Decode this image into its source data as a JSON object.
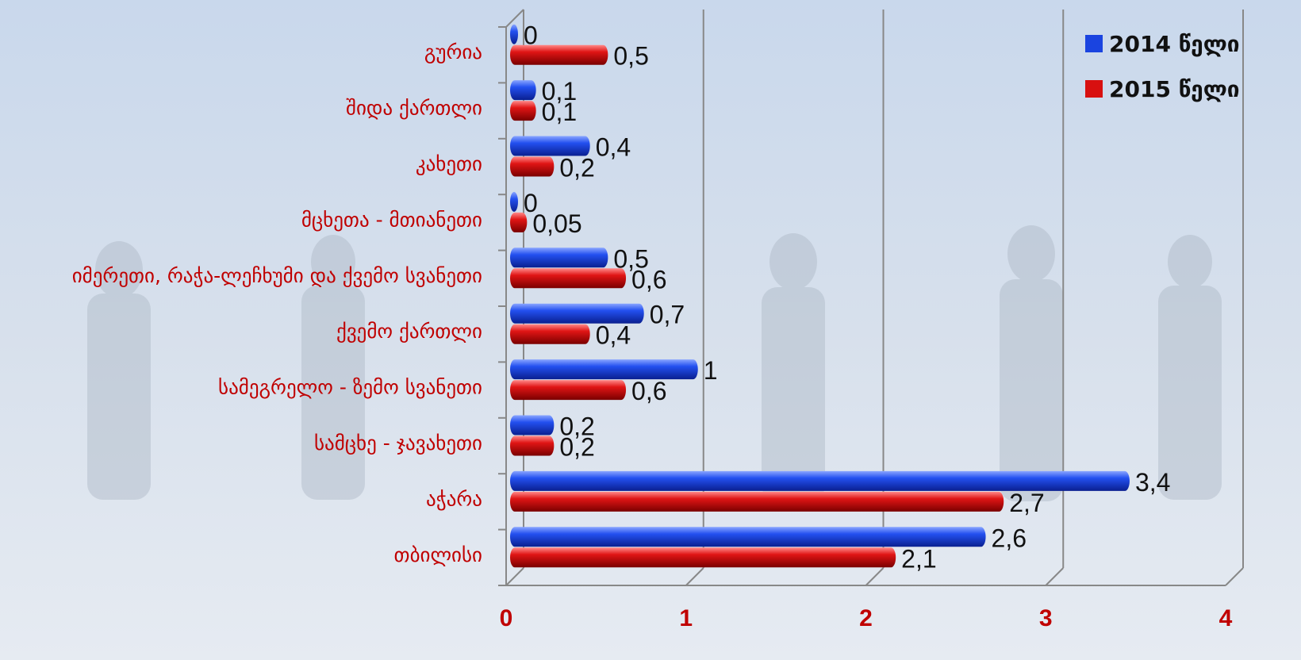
{
  "chart_data": {
    "type": "bar",
    "orientation": "horizontal",
    "categories": [
      "გურია",
      "შიდა ქართლი",
      "კახეთი",
      "მცხეთა - მთიანეთი",
      "იმერეთი, რაჭა-ლეჩხუმი და ქვემო სვანეთი",
      "ქვემო ქართლი",
      "სამეგრელო - ზემო სვანეთი",
      "სამცხე - ჯავახეთი",
      "აჭარა",
      "თბილისი"
    ],
    "series": [
      {
        "name": "2014 წელი",
        "color": "#1a44e0",
        "values": [
          0,
          0.1,
          0.4,
          0,
          0.5,
          0.7,
          1,
          0.2,
          3.4,
          2.6
        ],
        "value_labels": [
          "0",
          "0,1",
          "0,4",
          "0",
          "0,5",
          "0,7",
          "1",
          "0,2",
          "3,4",
          "2,6"
        ]
      },
      {
        "name": "2015 წელი",
        "color": "#d81010",
        "values": [
          0.5,
          0.1,
          0.2,
          0.05,
          0.6,
          0.4,
          0.6,
          0.2,
          2.7,
          2.1
        ],
        "value_labels": [
          "0,5",
          "0,1",
          "0,2",
          "0,05",
          "0,6",
          "0,4",
          "0,6",
          "0,2",
          "2,7",
          "2,1"
        ]
      }
    ],
    "xlim": [
      0,
      4
    ],
    "xticks": [
      0,
      1,
      2,
      3,
      4
    ],
    "grid": true,
    "legend": "top-right"
  }
}
